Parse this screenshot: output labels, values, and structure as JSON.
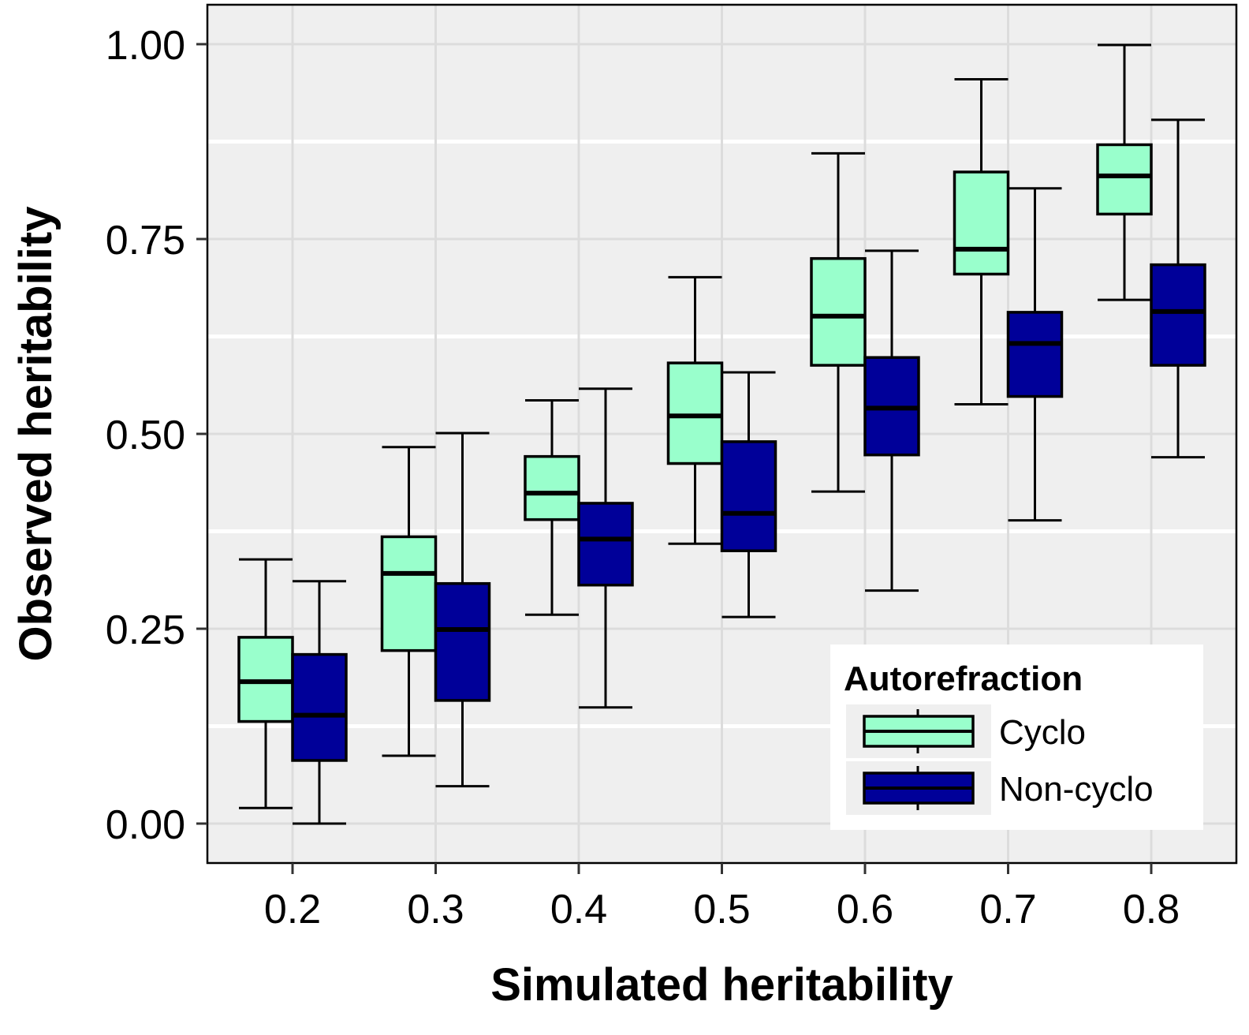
{
  "chart_data": {
    "type": "boxplot",
    "title": "",
    "xlabel": "Simulated heritability",
    "ylabel": "Observed heritability",
    "categories": [
      "0.2",
      "0.3",
      "0.4",
      "0.5",
      "0.6",
      "0.7",
      "0.8"
    ],
    "ylim": [
      -0.05,
      1.05
    ],
    "yticks": [
      0.0,
      0.25,
      0.5,
      0.75,
      1.0
    ],
    "ytick_labels": [
      "0.00",
      "0.25",
      "0.50",
      "0.75",
      "1.00"
    ],
    "grid": true,
    "legend": {
      "title": "Autorefraction",
      "placement": "bottom-right",
      "entries": [
        "Cyclo",
        "Non-cyclo"
      ]
    },
    "series": [
      {
        "name": "Cyclo",
        "color": "#99FFCC",
        "boxes": [
          {
            "min": 0.02,
            "q1": 0.131,
            "median": 0.182,
            "q3": 0.239,
            "max": 0.339
          },
          {
            "min": 0.087,
            "q1": 0.222,
            "median": 0.321,
            "q3": 0.368,
            "max": 0.483
          },
          {
            "min": 0.268,
            "q1": 0.39,
            "median": 0.424,
            "q3": 0.471,
            "max": 0.543
          },
          {
            "min": 0.359,
            "q1": 0.462,
            "median": 0.523,
            "q3": 0.591,
            "max": 0.701
          },
          {
            "min": 0.426,
            "q1": 0.588,
            "median": 0.651,
            "q3": 0.725,
            "max": 0.86
          },
          {
            "min": 0.538,
            "q1": 0.705,
            "median": 0.737,
            "q3": 0.836,
            "max": 0.955
          },
          {
            "min": 0.672,
            "q1": 0.782,
            "median": 0.831,
            "q3": 0.871,
            "max": 0.999
          }
        ]
      },
      {
        "name": "Non-cyclo",
        "color": "#000099",
        "boxes": [
          {
            "min": 0.0,
            "q1": 0.081,
            "median": 0.139,
            "q3": 0.217,
            "max": 0.311
          },
          {
            "min": 0.048,
            "q1": 0.158,
            "median": 0.249,
            "q3": 0.308,
            "max": 0.501
          },
          {
            "min": 0.149,
            "q1": 0.306,
            "median": 0.365,
            "q3": 0.411,
            "max": 0.558
          },
          {
            "min": 0.265,
            "q1": 0.35,
            "median": 0.398,
            "q3": 0.49,
            "max": 0.579
          },
          {
            "min": 0.299,
            "q1": 0.473,
            "median": 0.533,
            "q3": 0.598,
            "max": 0.735
          },
          {
            "min": 0.389,
            "q1": 0.548,
            "median": 0.616,
            "q3": 0.656,
            "max": 0.815
          },
          {
            "min": 0.47,
            "q1": 0.588,
            "median": 0.657,
            "q3": 0.717,
            "max": 0.903
          }
        ]
      }
    ]
  }
}
